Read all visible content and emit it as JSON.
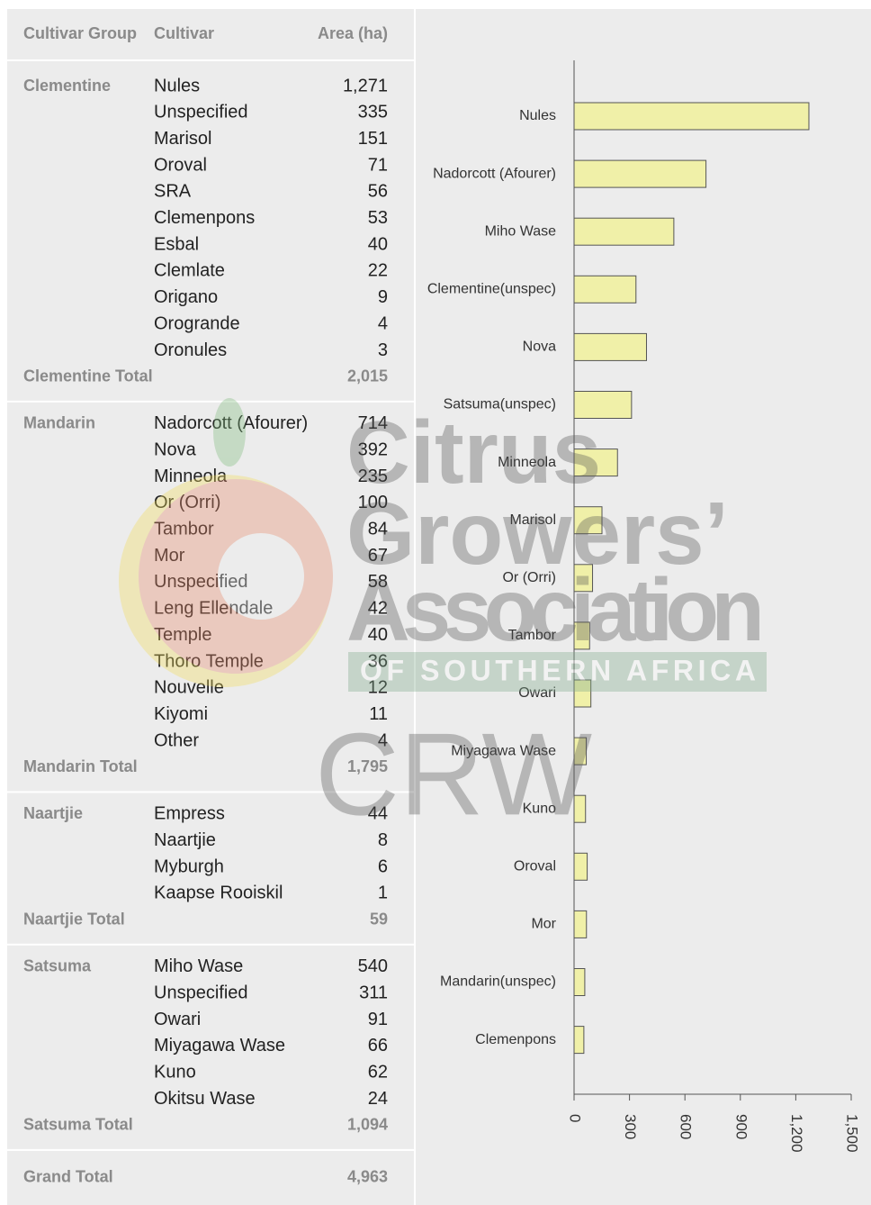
{
  "table": {
    "header": [
      "Cultivar Group",
      "Cultivar",
      "Area (ha)"
    ],
    "groups": [
      {
        "name": "Clementine",
        "rows": [
          [
            "Nules",
            "1,271"
          ],
          [
            "Unspecified",
            "335"
          ],
          [
            "Marisol",
            "151"
          ],
          [
            "Oroval",
            "71"
          ],
          [
            "SRA",
            "56"
          ],
          [
            "Clemenpons",
            "53"
          ],
          [
            "Esbal",
            "40"
          ],
          [
            "Clemlate",
            "22"
          ],
          [
            "Origano",
            "9"
          ],
          [
            "Orogrande",
            "4"
          ],
          [
            "Oronules",
            "3"
          ]
        ],
        "total_label": "Clementine Total",
        "total": "2,015"
      },
      {
        "name": "Mandarin",
        "rows": [
          [
            "Nadorcott (Afourer)",
            "714"
          ],
          [
            "Nova",
            "392"
          ],
          [
            "Minneola",
            "235"
          ],
          [
            "Or (Orri)",
            "100"
          ],
          [
            "Tambor",
            "84"
          ],
          [
            "Mor",
            "67"
          ],
          [
            "Unspecified",
            "58"
          ],
          [
            "Leng Ellendale",
            "42"
          ],
          [
            "Temple",
            "40"
          ],
          [
            "Thoro Temple",
            "36"
          ],
          [
            "Nouvelle",
            "12"
          ],
          [
            "Kiyomi",
            "11"
          ],
          [
            "Other",
            "4"
          ]
        ],
        "total_label": "Mandarin Total",
        "total": "1,795"
      },
      {
        "name": "Naartjie",
        "rows": [
          [
            "Empress",
            "44"
          ],
          [
            "Naartjie",
            "8"
          ],
          [
            "Myburgh",
            "6"
          ],
          [
            "Kaapse Rooiskil",
            "1"
          ]
        ],
        "total_label": "Naartjie Total",
        "total": "59"
      },
      {
        "name": "Satsuma",
        "rows": [
          [
            "Miho Wase",
            "540"
          ],
          [
            "Unspecified",
            "311"
          ],
          [
            "Owari",
            "91"
          ],
          [
            "Miyagawa Wase",
            "66"
          ],
          [
            "Kuno",
            "62"
          ],
          [
            "Okitsu Wase",
            "24"
          ]
        ],
        "total_label": "Satsuma Total",
        "total": "1,094"
      }
    ],
    "grand_total_label": "Grand Total",
    "grand_total": "4,963"
  },
  "watermark": {
    "lines": [
      "Citrus",
      "Growers’",
      "Association"
    ],
    "tagline": "OF SOUTHERN AFRICA",
    "mark": "CRW"
  },
  "chart_data": {
    "type": "hbar",
    "categories": [
      "Nules",
      "Nadorcott (Afourer)",
      "Miho Wase",
      "Clementine(unspec)",
      "Nova",
      "Satsuma(unspec)",
      "Minneola",
      "Marisol",
      "Or (Orri)",
      "Tambor",
      "Owari",
      "Miyagawa Wase",
      "Kuno",
      "Oroval",
      "Mor",
      "Mandarin(unspec)",
      "Clemenpons"
    ],
    "values": [
      1271,
      714,
      540,
      335,
      392,
      311,
      235,
      151,
      100,
      84,
      91,
      66,
      62,
      71,
      67,
      58,
      53
    ],
    "color": "#f0f0a8",
    "xlim": [
      0,
      1500
    ],
    "xticks": [
      0,
      300,
      600,
      900,
      {
        "value": 1200,
        "label": "1,200"
      },
      {
        "value": 1500,
        "label": "1,500"
      }
    ]
  }
}
